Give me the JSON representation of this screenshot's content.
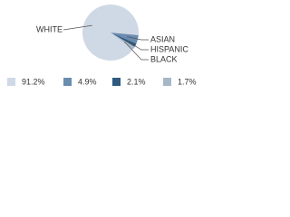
{
  "chart_data": {
    "type": "pie",
    "categories": [
      "WHITE",
      "ASIAN",
      "HISPANIC",
      "BLACK"
    ],
    "values": [
      91.2,
      4.9,
      2.1,
      1.7
    ],
    "value_labels": [
      "91.2%",
      "4.9%",
      "2.1%",
      "1.7%"
    ],
    "colors": [
      "#cfd9e5",
      "#6a8cb0",
      "#2e5a80",
      "#a7b7ca"
    ]
  }
}
